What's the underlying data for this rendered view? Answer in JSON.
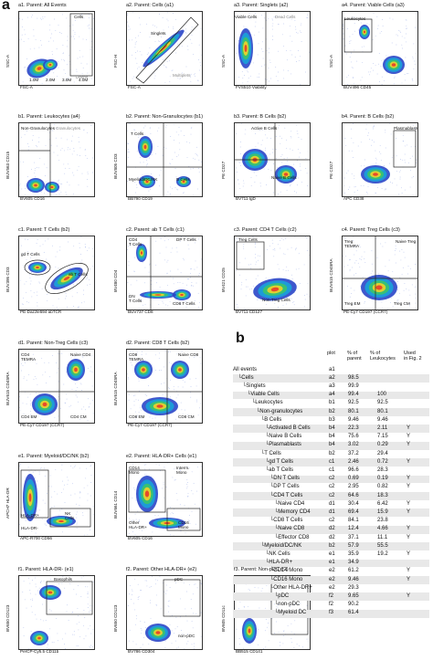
{
  "panel_a_letter": "a",
  "panel_b_letter": "b",
  "plots": [
    {
      "id": "a1",
      "title": "a1. Parent: All Events",
      "ylabel": "SSC-A",
      "xlabel": "FSC-A",
      "color": "#2a5bd7",
      "gates": [
        {
          "text": "Cells"
        },
        {
          "text": "Debris",
          "muted": true
        }
      ],
      "xticks": [
        "1.0M",
        "2.0M",
        "3.0M",
        "4.0M"
      ]
    },
    {
      "id": "a2",
      "title": "a2. Parent: Cells (a1)",
      "ylabel": "FSC-H",
      "xlabel": "FSC-A",
      "color": "#2a5bd7",
      "gates": [
        {
          "text": "Singlets"
        },
        {
          "text": "Multiplets",
          "muted": true
        }
      ]
    },
    {
      "id": "a3",
      "title": "a3. Parent: Singlets (a2)",
      "ylabel": "SSC-A",
      "xlabel": "FVS510 Viability",
      "color": "#2a5bd7",
      "gates": [
        {
          "text": "Viable Cells"
        },
        {
          "text": "Dead Cells",
          "muted": true
        }
      ]
    },
    {
      "id": "a4",
      "title": "a4. Parent: Viable Cells (a3)",
      "ylabel": "SSC-A",
      "xlabel": "BUV496 CD45",
      "color": "#2a5bd7",
      "gates": [
        {
          "text": "Leukocytes"
        }
      ]
    },
    {
      "id": "b1",
      "title": "b1. Parent: Leukocytes (a4)",
      "ylabel": "BUV563 CD15",
      "xlabel": "BV605 CD16",
      "color": "#2a5bd7",
      "gates": [
        {
          "text": "Non-Granulocytes"
        },
        {
          "text": "Granulocytes",
          "muted": true
        }
      ]
    },
    {
      "id": "b2",
      "title": "b2. Parent: Non-Granulocytes (b1)",
      "ylabel": "BUV805 CD3",
      "xlabel": "BB790 CD19",
      "color": "#2a5bd7",
      "gates": [
        {
          "text": "T Cells"
        },
        {
          "text": "Myeloid/DC/NK"
        },
        {
          "text": "B Cells"
        }
      ]
    },
    {
      "id": "b3",
      "title": "b3. Parent: B Cells (b2)",
      "ylabel": "PE CD27",
      "xlabel": "BV711 IgD",
      "color": "#2a5bd7",
      "gates": [
        {
          "text": "Active B Cells"
        },
        {
          "text": "Naive B Cells"
        }
      ]
    },
    {
      "id": "b4",
      "title": "b4. Parent: B Cells (b2)",
      "ylabel": "PE CD27",
      "xlabel": "APC CD38",
      "color": "#2a5bd7",
      "gates": [
        {
          "text": "Plasmablasts"
        }
      ]
    },
    {
      "id": "c1",
      "title": "c1. Parent: T Cells (b2)",
      "ylabel": "BUV395 CD3",
      "xlabel": "PE-Dazzle594 abTCR",
      "color": "#2a5bd7",
      "gates": [
        {
          "text": "gd T Cells"
        },
        {
          "text": "ab T Cells"
        }
      ]
    },
    {
      "id": "c2",
      "title": "c2. Parent: ab T Cells (c1)",
      "ylabel": "BV480 CD4",
      "xlabel": "BUV737 CD8",
      "color": "#2a5bd7",
      "gates": [
        {
          "text": "CD4\nT Cells"
        },
        {
          "text": "DP T Cells"
        },
        {
          "text": "DN\nT Cells"
        },
        {
          "text": "CD8 T Cells"
        }
      ]
    },
    {
      "id": "c3",
      "title": "c3. Parent: CD4 T Cells (c2)",
      "ylabel": "BV421 CD25",
      "xlabel": "BV711 CD127",
      "color": "#2a5bd7",
      "gates": [
        {
          "text": "Treg Cells"
        },
        {
          "text": "Non-Treg Cells"
        }
      ]
    },
    {
      "id": "c4",
      "title": "c4. Parent: Treg Cells (c3)",
      "ylabel": "BUV615 CD45RA",
      "xlabel": "PE-Cy7 CD197 (CCR7)",
      "color": "#2a5bd7",
      "gates": [
        {
          "text": "Treg\nTEMRA"
        },
        {
          "text": "Naive Treg"
        },
        {
          "text": "Treg EM"
        },
        {
          "text": "Treg CM"
        }
      ]
    },
    {
      "id": "d1",
      "title": "d1. Parent: Non-Treg Cells (c3)",
      "ylabel": "BUV615 CD45RA",
      "xlabel": "PE-Cy7 CD197 (CCR7)",
      "color": "#2a5bd7",
      "gates": [
        {
          "text": "CD4\nTEMRA"
        },
        {
          "text": "Naive CD4"
        },
        {
          "text": "CD4 EM"
        },
        {
          "text": "CD4 CM"
        }
      ]
    },
    {
      "id": "d2",
      "title": "d2. Parent: CD8 T Cells (b2)",
      "ylabel": "BUV615 CD45RA",
      "xlabel": "PE-Cy7 CD197 (CCR7)",
      "color": "#2a5bd7",
      "gates": [
        {
          "text": "CD8\nTEMRA"
        },
        {
          "text": "Naive CD8"
        },
        {
          "text": "CD8 EM"
        },
        {
          "text": "CD8 CM"
        }
      ]
    },
    {
      "id": "e1",
      "title": "e1. Parent: Myeloid/DC/NK (b2)",
      "ylabel": "APCH7 HLA-DR",
      "xlabel": "APC-R700 CD56",
      "color": "#2a5bd7",
      "gates": [
        {
          "text": "HLA-DR+"
        },
        {
          "text": "NK\nCells"
        },
        {
          "text": "HLA-DR-"
        }
      ]
    },
    {
      "id": "e2",
      "title": "e2. Parent: HLA-DR+ Cells (e1)",
      "ylabel": "BUV661 CD14",
      "xlabel": "BV605 CD16",
      "color": "#2a5bd7",
      "gates": [
        {
          "text": "CD14\nMono"
        },
        {
          "text": "Interm.\nMono"
        },
        {
          "text": "Other\nHLA-DR+"
        },
        {
          "text": "CD16\nMono"
        }
      ]
    },
    {
      "id": "f1",
      "title": "f1. Parent: HLA-DR- (e1)",
      "ylabel": "BV650 CD123",
      "xlabel": "PerCP-Cy5.5 CD11b",
      "color": "#2a5bd7",
      "gates": [
        {
          "text": "Basophils"
        }
      ]
    },
    {
      "id": "f2",
      "title": "f2. Parent: Other HLA-DR+ (e2)",
      "ylabel": "BV650 CD123",
      "xlabel": "BV786 CD304",
      "color": "#2a5bd7",
      "gates": [
        {
          "text": "pDC"
        },
        {
          "text": "non-pDC"
        }
      ]
    },
    {
      "id": "f3",
      "title": "f3. Parent: Non-pDC (f2)",
      "ylabel": "BV605 CD11c",
      "xlabel": "BB515 CD141",
      "color": "#2a5bd7",
      "gates": [
        {
          "text": "Myeloid DC"
        }
      ]
    }
  ],
  "table": {
    "headers": {
      "plot": "plot",
      "parent": "% of\nparent",
      "leuk": "% of\nLeukocytes",
      "used": "Used\nin Fig. 2"
    },
    "rows": [
      {
        "name": "All events",
        "plot": "a1",
        "parent": "",
        "leuk": "",
        "used": ""
      },
      {
        "name": "Cells",
        "plot": "a2",
        "parent": "98.5",
        "leuk": "",
        "used": ""
      },
      {
        "name": "Singlets",
        "plot": "a3",
        "parent": "99.9",
        "leuk": "",
        "used": ""
      },
      {
        "name": "Viable Cells",
        "plot": "a4",
        "parent": "99.4",
        "leuk": "100",
        "used": ""
      },
      {
        "name": "Leukocytes",
        "plot": "b1",
        "parent": "92.5",
        "leuk": "92.5",
        "used": ""
      },
      {
        "name": "Non-granulocytes",
        "plot": "b2",
        "parent": "80.1",
        "leuk": "80.1",
        "used": ""
      },
      {
        "name": "B Cells",
        "plot": "b3",
        "parent": "9.46",
        "leuk": "9.46",
        "used": ""
      },
      {
        "name": "Activated B Cells",
        "plot": "b4",
        "parent": "22.3",
        "leuk": "2.11",
        "used": "Y"
      },
      {
        "name": "Naive B Cells",
        "plot": "b4",
        "parent": "75.6",
        "leuk": "7.15",
        "used": "Y"
      },
      {
        "name": "Plasmablasts",
        "plot": "b4",
        "parent": "3.02",
        "leuk": "0.29",
        "used": "Y"
      },
      {
        "name": "T Cells",
        "plot": "b2",
        "parent": "37.2",
        "leuk": "29.4",
        "used": ""
      },
      {
        "name": "gd T Cells",
        "plot": "c1",
        "parent": "2.46",
        "leuk": "0.72",
        "used": "Y"
      },
      {
        "name": "ab T Cells",
        "plot": "c1",
        "parent": "96.6",
        "leuk": "28.3",
        "used": ""
      },
      {
        "name": "DN T Cells",
        "plot": "c2",
        "parent": "0.69",
        "leuk": "0.19",
        "used": "Y"
      },
      {
        "name": "DP T Cells",
        "plot": "c2",
        "parent": "2.95",
        "leuk": "0.82",
        "used": "Y"
      },
      {
        "name": "CD4 T Cells",
        "plot": "c2",
        "parent": "64.6",
        "leuk": "18.3",
        "used": ""
      },
      {
        "name": "Naive CD4",
        "plot": "d1",
        "parent": "30.4",
        "leuk": "6.42",
        "used": "Y"
      },
      {
        "name": "Memory CD4",
        "plot": "d1",
        "parent": "69.4",
        "leuk": "15.9",
        "used": "Y"
      },
      {
        "name": "CD8 T Cells",
        "plot": "c2",
        "parent": "84.1",
        "leuk": "23.8",
        "used": ""
      },
      {
        "name": "Naive CD8",
        "plot": "d2",
        "parent": "12.4",
        "leuk": "4.66",
        "used": "Y"
      },
      {
        "name": "Effector CD8",
        "plot": "d2",
        "parent": "37.1",
        "leuk": "11.1",
        "used": "Y"
      },
      {
        "name": "Myeloid/DC/NK",
        "plot": "b2",
        "parent": "57.9",
        "leuk": "55.5",
        "used": ""
      },
      {
        "name": "NK Cells",
        "plot": "e1",
        "parent": "35.9",
        "leuk": "19.2",
        "used": "Y"
      },
      {
        "name": "HLA-DR+",
        "plot": "e1",
        "parent": "34.9",
        "leuk": "",
        "used": ""
      },
      {
        "name": "CD14 Mono",
        "plot": "e2",
        "parent": "61.2",
        "leuk": "",
        "used": "Y"
      },
      {
        "name": "CD16 Mono",
        "plot": "e2",
        "parent": "9.46",
        "leuk": "",
        "used": "Y"
      },
      {
        "name": "Other HLA-DR+",
        "plot": "e2",
        "parent": "29.3",
        "leuk": "",
        "used": ""
      },
      {
        "name": "pDC",
        "plot": "f2",
        "parent": "9.65",
        "leuk": "",
        "used": "Y"
      },
      {
        "name": "non-pDC",
        "plot": "f2",
        "parent": "90.2",
        "leuk": "",
        "used": ""
      },
      {
        "name": "Myeloid DC",
        "plot": "f3",
        "parent": "61.4",
        "leuk": "",
        "used": ""
      }
    ]
  }
}
